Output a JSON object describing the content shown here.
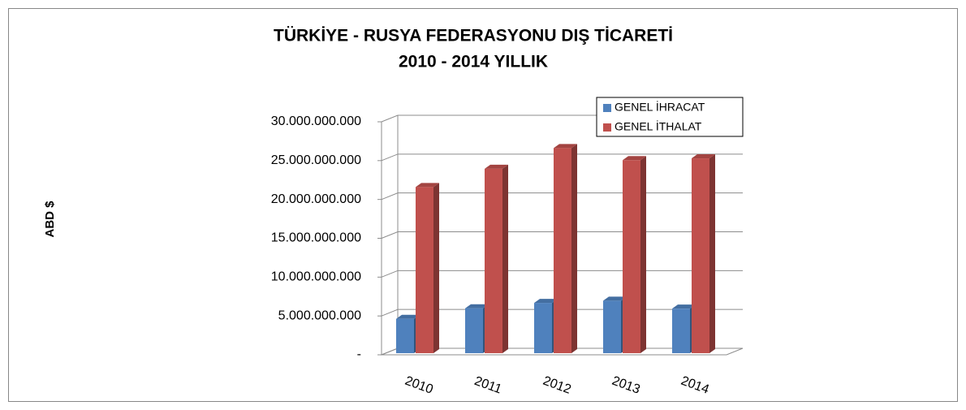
{
  "chart_data": {
    "type": "bar3d",
    "title": "TÜRKİYE - RUSYA FEDERASYONU DIŞ TİCARETİ",
    "subtitle": "2010 - 2014 YILLIK",
    "y_label": "ABD $",
    "categories": [
      "2010",
      "2011",
      "2012",
      "2013",
      "2014"
    ],
    "series": [
      {
        "name": "GENEL İHRACAT",
        "color": "#4f81bd",
        "values": [
          4630000000,
          5990000000,
          6680000000,
          6960000000,
          5940000000
        ]
      },
      {
        "name": "GENEL İTHALAT",
        "color": "#c0504d",
        "values": [
          21600000000,
          23950000000,
          26620000000,
          25060000000,
          25290000000
        ]
      }
    ],
    "ylim": [
      0,
      30000000000
    ],
    "yticks": [
      {
        "value": 0,
        "label": "-"
      },
      {
        "value": 5000000000,
        "label": "5.000.000.000"
      },
      {
        "value": 10000000000,
        "label": "10.000.000.000"
      },
      {
        "value": 15000000000,
        "label": "15.000.000.000"
      },
      {
        "value": 20000000000,
        "label": "20.000.000.000"
      },
      {
        "value": 25000000000,
        "label": "25.000.000.000"
      },
      {
        "value": 30000000000,
        "label": "30.000.000.000"
      }
    ],
    "grid": true,
    "legend": "top-right"
  }
}
